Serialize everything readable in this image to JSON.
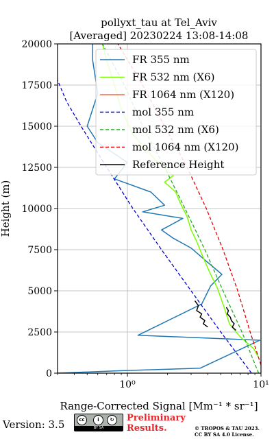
{
  "chart_data": {
    "type": "line",
    "title": "pollyxt_tau at Tel_Aviv",
    "subtitle": "[Averaged] 20230224 13:08-14:08",
    "xlabel": "Range-Corrected Signal [Mm⁻¹ * sr⁻¹]",
    "ylabel": "Height (m)",
    "xscale": "log",
    "xlim": [
      0.3,
      10
    ],
    "ylim": [
      0,
      20000
    ],
    "xticks": [
      {
        "value": 1,
        "label": "10⁰"
      },
      {
        "value": 10,
        "label": "10¹"
      }
    ],
    "yticks": [
      0,
      2500,
      5000,
      7500,
      10000,
      12500,
      15000,
      17500,
      20000
    ],
    "grid": true,
    "legend_position": "top-right",
    "series": [
      {
        "name": "FR 355 nm",
        "color": "#1f77b4",
        "style": "solid",
        "x": [
          0.3,
          0.9,
          3.5,
          9.8,
          1.2,
          3.6,
          4.2,
          5.1,
          3.9,
          3.0,
          2.2,
          1.8,
          2.6,
          1.3,
          1.9,
          1.5,
          0.8,
          1.0,
          0.6,
          0.5,
          0.6,
          0.55,
          0.55
        ],
        "y": [
          0,
          150,
          300,
          2000,
          2300,
          4200,
          5300,
          6000,
          6800,
          7600,
          8200,
          8700,
          9400,
          9800,
          10200,
          11000,
          11800,
          12800,
          14000,
          15000,
          17000,
          19000,
          20000
        ]
      },
      {
        "name": "FR 532 nm (X6)",
        "color": "#7cfc00",
        "style": "solid",
        "x": [
          9.5,
          8.8,
          7.0,
          5.8,
          5.3,
          4.7,
          4.2,
          3.7,
          3.3,
          3.0,
          2.8,
          2.5,
          2.3,
          1.9,
          2.2,
          1.6,
          1.1,
          0.9,
          0.8,
          0.7,
          0.65
        ],
        "y": [
          1000,
          1500,
          2200,
          3000,
          4000,
          5200,
          6000,
          7000,
          8000,
          8700,
          9500,
          10300,
          11000,
          11600,
          12000,
          13000,
          14500,
          16000,
          17500,
          19000,
          20000
        ]
      },
      {
        "name": "FR 1064 nm (X120)",
        "color": "#ff6347",
        "style": "solid",
        "x": [],
        "y": []
      },
      {
        "name": "mol 355 nm",
        "color": "#0000cc",
        "style": "dashed",
        "x": [
          8.5,
          5.0,
          3.0,
          1.8,
          1.1,
          0.7,
          0.45,
          0.35,
          0.3
        ],
        "y": [
          0,
          2500,
          5000,
          7500,
          10000,
          12500,
          15000,
          16500,
          17800
        ]
      },
      {
        "name": "mol 532 nm (X6)",
        "color": "#22aa22",
        "style": "dashed",
        "x": [
          9.6,
          7.2,
          5.2,
          3.8,
          2.7,
          1.9,
          1.3,
          0.95,
          0.65
        ],
        "y": [
          0,
          2500,
          5000,
          7500,
          10000,
          12500,
          15000,
          17500,
          20000
        ]
      },
      {
        "name": "mol 1064 nm (X120)",
        "color": "#dd0000",
        "style": "dashed",
        "x": [
          10.0,
          8.3,
          6.7,
          5.2,
          3.9,
          2.8,
          1.9,
          1.3,
          0.85
        ],
        "y": [
          500,
          2500,
          5000,
          7500,
          10000,
          12500,
          15000,
          17500,
          20000
        ]
      },
      {
        "name": "Reference Height",
        "color": "#000000",
        "style": "solid",
        "segments": [
          {
            "x": [
              3.2,
              3.4,
              3.3,
              3.6,
              3.5,
              3.8,
              3.7,
              4.0
            ],
            "y": [
              4400,
              4100,
              3800,
              3600,
              3400,
              3200,
              3000,
              2800
            ]
          },
          {
            "x": [
              5.5,
              5.7,
              5.6,
              5.9,
              6.0,
              6.3,
              6.1,
              6.5
            ],
            "y": [
              4000,
              3800,
              3600,
              3400,
              3200,
              3000,
              2800,
              2600
            ]
          }
        ]
      }
    ]
  },
  "footer": {
    "version": "Version: 3.5",
    "preliminary_line1": "Preliminary",
    "preliminary_line2": "Results.",
    "copyright_line1": "© TROPOS & TAU 2023.",
    "copyright_line2": "CC BY SA 4.0 License.",
    "cc_badge_text": "BY   SA"
  }
}
